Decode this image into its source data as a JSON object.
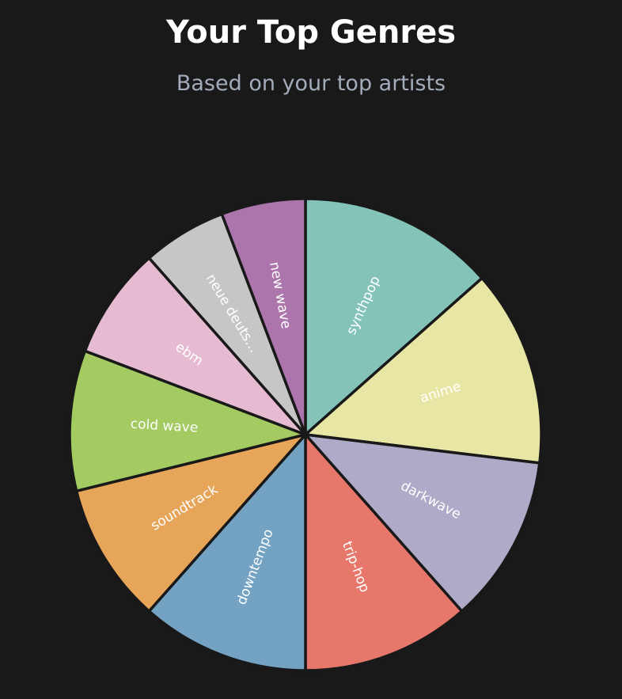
{
  "chart_data": {
    "type": "pie",
    "title": "Your Top Genres",
    "subtitle": "Based on your top artists",
    "slices": [
      {
        "label": "synthpop",
        "value": 7,
        "color": "#83c3b8"
      },
      {
        "label": "anime",
        "value": 7,
        "color": "#e8e6a4"
      },
      {
        "label": "darkwave",
        "value": 6,
        "color": "#aeaac8"
      },
      {
        "label": "trip-hop",
        "value": 6,
        "color": "#e6776a"
      },
      {
        "label": "downtempo",
        "value": 6,
        "color": "#74a2c2"
      },
      {
        "label": "soundtrack",
        "value": 5,
        "color": "#e7a55a"
      },
      {
        "label": "cold wave",
        "value": 5,
        "color": "#a4cb61"
      },
      {
        "label": "ebm",
        "value": 4,
        "color": "#e6bbd2"
      },
      {
        "label": "neue deuts…",
        "value": 3,
        "color": "#c6c6c6"
      },
      {
        "label": "new wave",
        "value": 3,
        "color": "#ac76ad"
      }
    ]
  }
}
